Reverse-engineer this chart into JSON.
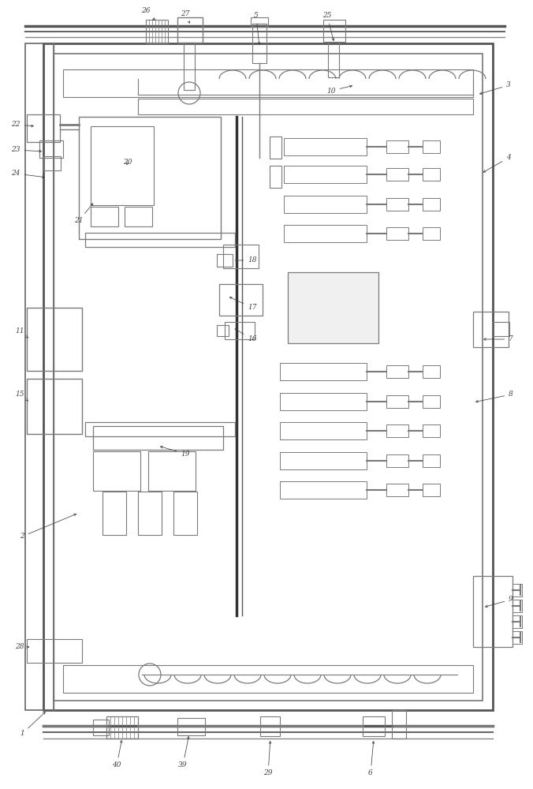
{
  "bg_color": "#ffffff",
  "lc": "#7a7a7a",
  "dc": "#404040",
  "fig_width": 6.76,
  "fig_height": 10.0
}
